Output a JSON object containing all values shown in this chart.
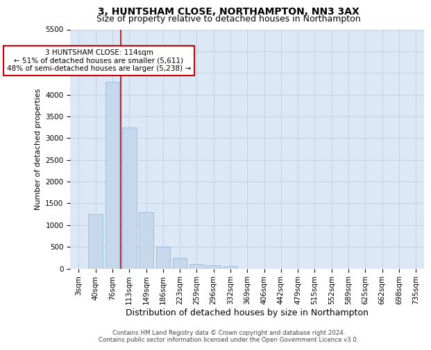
{
  "title": "3, HUNTSHAM CLOSE, NORTHAMPTON, NN3 3AX",
  "subtitle": "Size of property relative to detached houses in Northampton",
  "xlabel": "Distribution of detached houses by size in Northampton",
  "ylabel": "Number of detached properties",
  "categories": [
    "3sqm",
    "40sqm",
    "76sqm",
    "113sqm",
    "149sqm",
    "186sqm",
    "223sqm",
    "259sqm",
    "296sqm",
    "332sqm",
    "369sqm",
    "406sqm",
    "442sqm",
    "479sqm",
    "515sqm",
    "552sqm",
    "589sqm",
    "625sqm",
    "662sqm",
    "698sqm",
    "735sqm"
  ],
  "values": [
    0,
    1250,
    4300,
    3250,
    1300,
    500,
    250,
    100,
    75,
    50,
    0,
    0,
    0,
    0,
    0,
    0,
    0,
    0,
    0,
    0,
    0
  ],
  "bar_color": "#c8d8ec",
  "bar_edgecolor": "#8ab4d8",
  "vline_color": "#cc0000",
  "vline_x": 2.5,
  "annotation_text": "3 HUNTSHAM CLOSE: 114sqm\n← 51% of detached houses are smaller (5,611)\n48% of semi-detached houses are larger (5,238) →",
  "annotation_box_color": "#ffffff",
  "annotation_box_edgecolor": "#cc0000",
  "ylim": [
    0,
    5500
  ],
  "yticks": [
    0,
    500,
    1000,
    1500,
    2000,
    2500,
    3000,
    3500,
    4000,
    4500,
    5000,
    5500
  ],
  "footer1": "Contains HM Land Registry data © Crown copyright and database right 2024.",
  "footer2": "Contains public sector information licensed under the Open Government Licence v3.0.",
  "bg_color": "#ffffff",
  "plot_bg_color": "#dce8f5",
  "grid_color": "#c0cfe0",
  "title_fontsize": 10,
  "subtitle_fontsize": 9,
  "ylabel_fontsize": 8,
  "xlabel_fontsize": 9,
  "tick_fontsize": 7.5,
  "bar_width": 0.85
}
